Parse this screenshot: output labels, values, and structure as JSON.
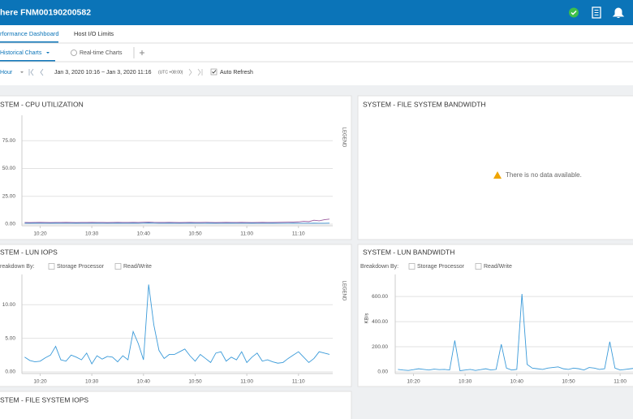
{
  "header": {
    "title": "here FNM00190200582"
  },
  "tabs": [
    "rformance Dashboard",
    "Host I/O Limits"
  ],
  "subtabs": [
    "Historical Charts",
    "Real-time Charts"
  ],
  "toolbar": {
    "range": "Hour",
    "time_range": "Jan 3, 2020 10:16  ~  Jan 3, 2020 11:16",
    "timezone": "(UTC +08:00)",
    "auto_refresh": "Auto Refresh"
  },
  "panels": {
    "file_system_bandwidth": {
      "title": "SYSTEM - FILE SYSTEM BANDWIDTH",
      "message": "There is no data available."
    },
    "file_system_iops": {
      "title": "STEM - FILE SYSTEM IOPS"
    }
  },
  "chart_data": [
    {
      "type": "line",
      "title": "STEM - CPU UTILIZATION",
      "legend_label": "LEGEND",
      "x": [
        "10:17",
        "10:18",
        "10:19",
        "10:20",
        "10:21",
        "10:22",
        "10:23",
        "10:24",
        "10:25",
        "10:26",
        "10:27",
        "10:28",
        "10:29",
        "10:30",
        "10:31",
        "10:32",
        "10:33",
        "10:34",
        "10:35",
        "10:36",
        "10:37",
        "10:38",
        "10:39",
        "10:40",
        "10:41",
        "10:42",
        "10:43",
        "10:44",
        "10:45",
        "10:46",
        "10:47",
        "10:48",
        "10:49",
        "10:50",
        "10:51",
        "10:52",
        "10:53",
        "10:54",
        "10:55",
        "10:56",
        "10:57",
        "10:58",
        "10:59",
        "11:00",
        "11:01",
        "11:02",
        "11:03",
        "11:04",
        "11:05",
        "11:06",
        "11:07",
        "11:08",
        "11:09",
        "11:10",
        "11:11",
        "11:12",
        "11:13",
        "11:14",
        "11:15",
        "11:16"
      ],
      "xlim": [
        "10:16",
        "11:16"
      ],
      "xticks": [
        "10:20",
        "10:30",
        "10:40",
        "10:50",
        "11:00",
        "11:10"
      ],
      "ylim": [
        0,
        100
      ],
      "yticks": [
        {
          "value": 0,
          "label": "0.00"
        },
        {
          "value": 25,
          "label": "25.00"
        },
        {
          "value": 50,
          "label": "50.00"
        },
        {
          "value": 75,
          "label": "75.00"
        }
      ],
      "grid": true,
      "series": [
        {
          "color": "#9b5a9e",
          "values": [
            1.5,
            1.4,
            1.5,
            1.6,
            1.5,
            1.4,
            1.5,
            1.5,
            1.6,
            1.5,
            1.4,
            1.5,
            1.5,
            1.6,
            1.5,
            1.5,
            1.4,
            1.5,
            1.6,
            1.5,
            1.5,
            1.6,
            1.5,
            1.7,
            1.8,
            1.6,
            1.5,
            1.5,
            1.6,
            1.5,
            1.4,
            1.5,
            1.6,
            1.5,
            1.5,
            1.6,
            1.5,
            1.4,
            1.5,
            1.6,
            1.5,
            1.5,
            1.6,
            1.5,
            1.4,
            1.5,
            1.6,
            1.5,
            1.5,
            1.6,
            1.7,
            1.8,
            1.9,
            2.0,
            2.5,
            2.2,
            3.5,
            3.0,
            4.0,
            4.5
          ]
        },
        {
          "color": "#3a8fd1",
          "values": [
            0.8,
            0.8,
            0.9,
            0.8,
            0.8,
            0.8,
            0.9,
            0.8,
            0.8,
            0.8,
            0.9,
            0.8,
            0.8,
            0.8,
            0.9,
            0.8,
            0.8,
            0.8,
            0.9,
            0.8,
            0.8,
            0.9,
            0.8,
            0.9,
            1.0,
            0.9,
            0.8,
            0.8,
            0.9,
            0.8,
            0.8,
            0.8,
            0.9,
            0.8,
            0.8,
            0.8,
            0.9,
            0.8,
            0.8,
            0.8,
            0.9,
            0.8,
            0.8,
            0.8,
            0.9,
            0.8,
            0.8,
            0.8,
            0.9,
            0.8,
            0.8,
            0.8,
            0.9,
            0.8,
            0.8,
            0.8,
            0.9,
            0.8,
            0.8,
            0.9
          ]
        }
      ]
    },
    {
      "type": "line",
      "title": "STEM - LUN IOPS",
      "legend_label": "LEGEND",
      "breakdown": {
        "label": "reakdown By:",
        "options": [
          "Storage Processor",
          "Read/Write"
        ]
      },
      "x": [
        "10:17",
        "10:18",
        "10:19",
        "10:20",
        "10:21",
        "10:22",
        "10:23",
        "10:24",
        "10:25",
        "10:26",
        "10:27",
        "10:28",
        "10:29",
        "10:30",
        "10:31",
        "10:32",
        "10:33",
        "10:34",
        "10:35",
        "10:36",
        "10:37",
        "10:38",
        "10:39",
        "10:40",
        "10:41",
        "10:42",
        "10:43",
        "10:44",
        "10:45",
        "10:46",
        "10:47",
        "10:48",
        "10:49",
        "10:50",
        "10:51",
        "10:52",
        "10:53",
        "10:54",
        "10:55",
        "10:56",
        "10:57",
        "10:58",
        "10:59",
        "11:00",
        "11:01",
        "11:02",
        "11:03",
        "11:04",
        "11:05",
        "11:06",
        "11:07",
        "11:08",
        "11:09",
        "11:10",
        "11:11",
        "11:12",
        "11:13",
        "11:14",
        "11:15",
        "11:16"
      ],
      "xlim": [
        "10:16",
        "11:16"
      ],
      "xticks": [
        "10:20",
        "10:30",
        "10:40",
        "10:50",
        "11:00",
        "11:10"
      ],
      "ylim": [
        0,
        14.5
      ],
      "yticks": [
        {
          "value": 0,
          "label": "0.00"
        },
        {
          "value": 5,
          "label": "5.00"
        },
        {
          "value": 10,
          "label": "10.00"
        }
      ],
      "grid": true,
      "series": [
        {
          "color": "#3a9ad9",
          "values": [
            2.2,
            1.7,
            1.5,
            1.6,
            2.1,
            2.5,
            3.8,
            1.8,
            1.6,
            2.5,
            2.2,
            1.8,
            2.8,
            1.2,
            2.4,
            1.9,
            2.3,
            2.2,
            1.5,
            2.4,
            1.8,
            6.0,
            4.2,
            1.8,
            13.0,
            7.0,
            3.2,
            2.0,
            2.6,
            2.6,
            3.0,
            3.4,
            2.4,
            1.6,
            2.6,
            2.0,
            1.4,
            2.8,
            3.0,
            1.6,
            2.2,
            1.8,
            3.0,
            1.4,
            2.2,
            2.8,
            1.6,
            1.8,
            1.5,
            1.3,
            1.4,
            2.0,
            2.5,
            3.0,
            2.2,
            1.4,
            2.0,
            3.0,
            2.8,
            2.6
          ]
        }
      ]
    },
    {
      "type": "line",
      "title": "SYSTEM - LUN BANDWIDTH",
      "ylabel": "KB/s",
      "breakdown": {
        "label": "Breakdown By:",
        "options": [
          "Storage Processor",
          "Read/Write"
        ]
      },
      "x": [
        "10:17",
        "10:18",
        "10:19",
        "10:20",
        "10:21",
        "10:22",
        "10:23",
        "10:24",
        "10:25",
        "10:26",
        "10:27",
        "10:28",
        "10:29",
        "10:30",
        "10:31",
        "10:32",
        "10:33",
        "10:34",
        "10:35",
        "10:36",
        "10:37",
        "10:38",
        "10:39",
        "10:40",
        "10:41",
        "10:42",
        "10:43",
        "10:44",
        "10:45",
        "10:46",
        "10:47",
        "10:48",
        "10:49",
        "10:50",
        "10:51",
        "10:52",
        "10:53",
        "10:54",
        "10:55",
        "10:56",
        "10:57",
        "10:58",
        "10:59",
        "11:00",
        "11:01",
        "11:02",
        "11:03",
        "11:04",
        "11:05",
        "11:06",
        "11:07",
        "11:08",
        "11:09",
        "11:10",
        "11:11",
        "11:12",
        "11:13",
        "11:14",
        "11:15",
        "11:16"
      ],
      "xlim": [
        "10:16",
        "11:16"
      ],
      "xticks": [
        "10:20",
        "10:30",
        "10:40",
        "10:50",
        "11:00"
      ],
      "ylim": [
        0,
        775
      ],
      "yticks": [
        {
          "value": 0,
          "label": "0.00"
        },
        {
          "value": 200,
          "label": "200.00"
        },
        {
          "value": 400,
          "label": "400.00"
        },
        {
          "value": 600,
          "label": "600.00"
        }
      ],
      "grid": true,
      "series": [
        {
          "color": "#3a9ad9",
          "values": [
            20,
            15,
            12,
            18,
            25,
            20,
            15,
            22,
            18,
            20,
            15,
            250,
            10,
            15,
            20,
            12,
            18,
            25,
            15,
            20,
            220,
            30,
            15,
            20,
            620,
            60,
            30,
            25,
            20,
            30,
            35,
            40,
            25,
            20,
            30,
            25,
            15,
            35,
            30,
            20,
            25,
            240,
            30,
            15,
            20,
            25,
            30,
            20,
            15,
            20,
            25,
            18,
            22,
            20,
            15,
            25,
            20,
            18,
            22,
            20
          ]
        }
      ]
    }
  ]
}
